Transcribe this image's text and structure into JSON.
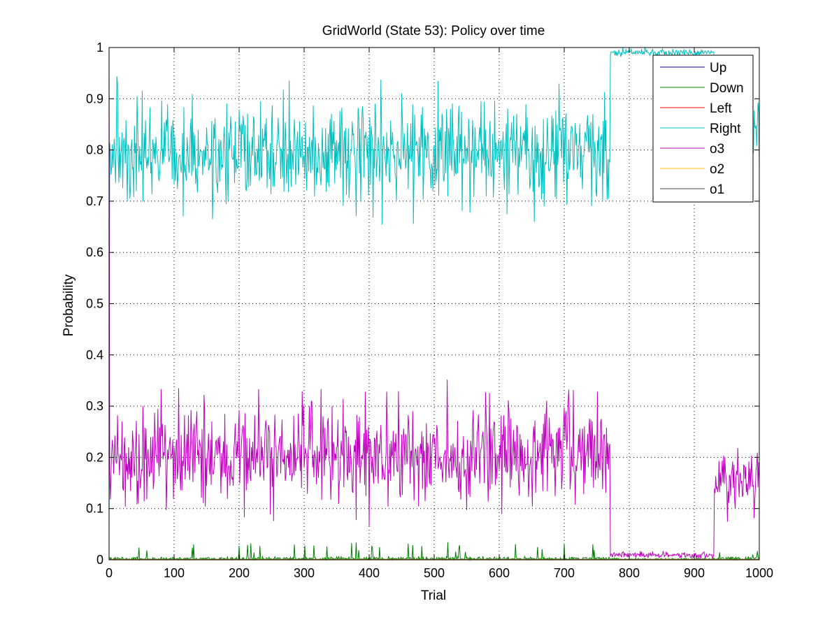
{
  "chart_data": {
    "type": "line",
    "title": "GridWorld (State 53): Policy over time",
    "xlabel": "Trial",
    "ylabel": "Probability",
    "xlim": [
      0,
      1000
    ],
    "ylim": [
      0,
      1
    ],
    "xticks": [
      "0",
      "100",
      "200",
      "300",
      "400",
      "500",
      "600",
      "700",
      "800",
      "900",
      "1000"
    ],
    "yticks": [
      "0",
      "0.1",
      "0.2",
      "0.3",
      "0.4",
      "0.5",
      "0.6",
      "0.7",
      "0.8",
      "0.9",
      "1"
    ],
    "grid": true,
    "legend_position": "top-right",
    "series": [
      {
        "name": "Up",
        "color": "#00008B",
        "segments": [
          {
            "x_start": 0,
            "x_end": 1000,
            "mean": 0.001,
            "noise": 0.0,
            "spike_rate": 0.0,
            "spike_max": 0.0
          }
        ]
      },
      {
        "name": "Down",
        "color": "#008000",
        "segments": [
          {
            "x_start": 0,
            "x_end": 770,
            "mean": 0.002,
            "noise": 0.002,
            "spike_rate": 0.06,
            "spike_max": 0.035
          },
          {
            "x_start": 770,
            "x_end": 930,
            "mean": 0.001,
            "noise": 0.001,
            "spike_rate": 0.0,
            "spike_max": 0.0
          },
          {
            "x_start": 930,
            "x_end": 1000,
            "mean": 0.002,
            "noise": 0.002,
            "spike_rate": 0.08,
            "spike_max": 0.025
          }
        ]
      },
      {
        "name": "Left",
        "color": "#FF0000",
        "segments": [
          {
            "x_start": 0,
            "x_end": 1000,
            "mean": 0.0005,
            "noise": 0.0,
            "spike_rate": 0.0,
            "spike_max": 0.0
          }
        ]
      },
      {
        "name": "Right",
        "color": "#00BFBF",
        "start_value": 0.0,
        "segments": [
          {
            "x_start": 0,
            "x_end": 770,
            "mean": 0.79,
            "noise": 0.045,
            "spike_rate": 0.03,
            "spike_max": 0.95
          },
          {
            "x_start": 770,
            "x_end": 930,
            "mean": 0.99,
            "noise": 0.004,
            "spike_rate": 0.0,
            "spike_max": 0.0
          },
          {
            "x_start": 930,
            "x_end": 1000,
            "mean": 0.85,
            "noise": 0.03,
            "spike_rate": 0.0,
            "spike_max": 0.0
          }
        ]
      },
      {
        "name": "o3",
        "color": "#BF00BF",
        "start_value": 1.0,
        "segments": [
          {
            "x_start": 0,
            "x_end": 770,
            "mean": 0.205,
            "noise": 0.045,
            "spike_rate": 0.03,
            "spike_max": 0.34
          },
          {
            "x_start": 770,
            "x_end": 930,
            "mean": 0.009,
            "noise": 0.003,
            "spike_rate": 0.0,
            "spike_max": 0.0
          },
          {
            "x_start": 930,
            "x_end": 1000,
            "mean": 0.15,
            "noise": 0.03,
            "spike_rate": 0.0,
            "spike_max": 0.0
          }
        ]
      },
      {
        "name": "o2",
        "color": "#FFBF00",
        "segments": [
          {
            "x_start": 0,
            "x_end": 1000,
            "mean": 0.0008,
            "noise": 0.0,
            "spike_rate": 0.0,
            "spike_max": 0.0
          }
        ]
      },
      {
        "name": "o1",
        "color": "#404040",
        "segments": [
          {
            "x_start": 0,
            "x_end": 1000,
            "mean": 0.0003,
            "noise": 0.0,
            "spike_rate": 0.0,
            "spike_max": 0.0
          }
        ]
      }
    ]
  }
}
